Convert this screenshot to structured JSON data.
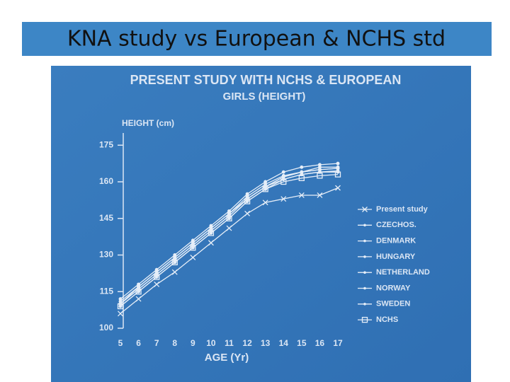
{
  "slide_title": "KNA study vs European & NCHS std",
  "chart_data": {
    "type": "line",
    "title": "PRESENT STUDY WITH NCHS & EUROPEAN",
    "subtitle": "GIRLS (HEIGHT)",
    "y_label": "HEIGHT (cm)",
    "x_label": "AGE (Yr)",
    "x": [
      5,
      6,
      7,
      8,
      9,
      10,
      11,
      12,
      13,
      14,
      15,
      16,
      17
    ],
    "xlim": [
      5,
      17
    ],
    "xticks": [
      5,
      6,
      7,
      8,
      9,
      10,
      11,
      12,
      13,
      14,
      15,
      16,
      17
    ],
    "ylim": [
      100,
      180
    ],
    "yticks": [
      100,
      115,
      130,
      145,
      160,
      175
    ],
    "series": [
      {
        "name": "Present study",
        "color": "#e6eef8",
        "marker": "x",
        "values": [
          106,
          112,
          118,
          123,
          129,
          135,
          141,
          147,
          151.5,
          153,
          154.5,
          154.5,
          157.5
        ]
      },
      {
        "name": "CZECHOS.",
        "color": "#e6eef8",
        "marker": "dot",
        "values": [
          110,
          116,
          122,
          128,
          134,
          140,
          146,
          153,
          158,
          162,
          164,
          165,
          165.5
        ]
      },
      {
        "name": "DENMARK",
        "color": "#e6eef8",
        "marker": "dot",
        "values": [
          111,
          117,
          123,
          129,
          135,
          141,
          147,
          154,
          159,
          162.5,
          164,
          165,
          165.5
        ]
      },
      {
        "name": "HUNGARY",
        "color": "#e6eef8",
        "marker": "dot",
        "values": [
          109,
          115,
          121,
          127,
          133,
          139,
          145,
          152,
          157,
          161,
          163,
          164,
          164.5
        ]
      },
      {
        "name": "NETHERLAND",
        "color": "#e6eef8",
        "marker": "dot",
        "values": [
          112,
          118,
          124,
          130,
          136,
          142,
          148,
          155,
          160,
          164,
          166,
          167,
          167.5
        ]
      },
      {
        "name": "NORWAY",
        "color": "#e6eef8",
        "marker": "dot",
        "values": [
          110,
          116,
          122,
          128,
          134,
          140,
          146,
          153,
          158,
          162,
          164,
          166,
          166
        ]
      },
      {
        "name": "SWEDEN",
        "color": "#e6eef8",
        "marker": "dot",
        "values": [
          110,
          117,
          123,
          129,
          135,
          141,
          147,
          153,
          158,
          161,
          163,
          164,
          164
        ]
      },
      {
        "name": "NCHS",
        "color": "#e6eef8",
        "marker": "square",
        "values": [
          109,
          115,
          121,
          127,
          133,
          139,
          145,
          152,
          157,
          160,
          161.5,
          162.5,
          163
        ]
      }
    ]
  }
}
